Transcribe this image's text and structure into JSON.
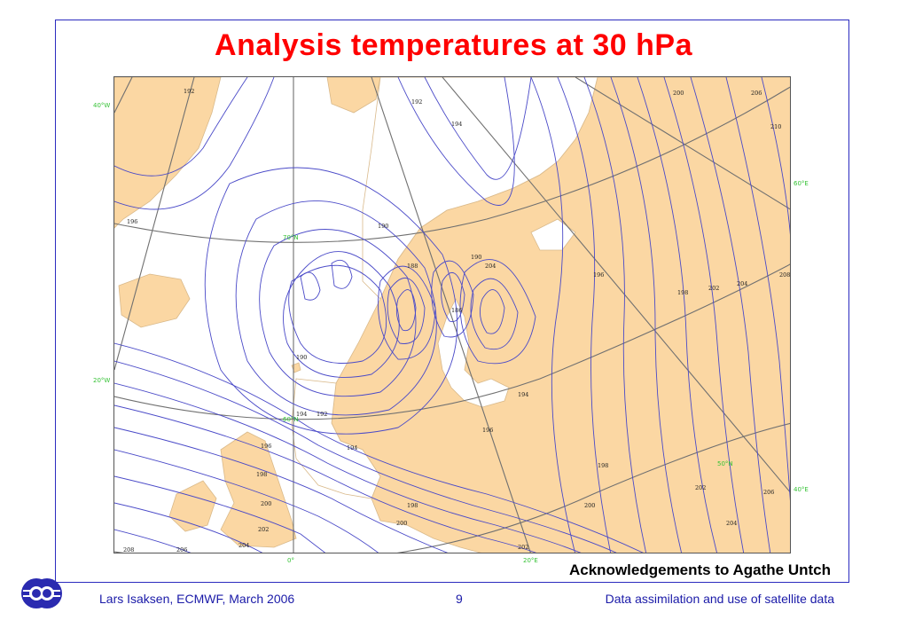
{
  "slide": {
    "title": "Analysis temperatures at 30 hPa",
    "acknowledgement": "Acknowledgements to Agathe Untch",
    "footer_left": "Lars Isaksen, ECMWF, March 2006",
    "page_number": "9",
    "footer_right": "Data assimilation and use of satellite data",
    "logo_icon": "ecmwf-logo-icon"
  },
  "map": {
    "graticule_labels": {
      "lon_40w": "40°W",
      "lon_20w": "20°W",
      "lat_70n": "70°N",
      "lat_60n": "60°N",
      "lat_50n": "50°N",
      "lon_60e": "60°E",
      "lon_40e": "40°E",
      "lon_0": "0°",
      "lon_20e": "20°E"
    },
    "contour_labels": [
      "192",
      "194",
      "196",
      "198",
      "200",
      "202",
      "204",
      "206",
      "208",
      "210",
      "190",
      "188",
      "186",
      "190",
      "192",
      "194",
      "196",
      "198",
      "200",
      "202",
      "204",
      "206",
      "208",
      "198",
      "200",
      "202",
      "204",
      "206",
      "194",
      "196",
      "198",
      "200",
      "202",
      "204",
      "196",
      "190",
      "192",
      "194"
    ],
    "colors": {
      "land": "#fbd7a3",
      "coast": "#d9b98a",
      "contour": "#4a4ac8",
      "graticule": "#707070",
      "graticule_label": "#35c235"
    }
  }
}
